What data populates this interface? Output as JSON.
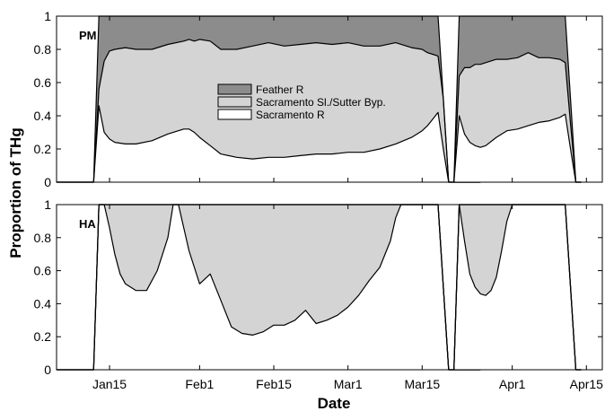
{
  "figure": {
    "ylabel": "Proportion of THg",
    "xlabel": "Date",
    "xticks": [
      "Jan15",
      "Feb1",
      "Feb15",
      "Mar1",
      "Mar15",
      "Apr1",
      "Apr15"
    ],
    "yticks": [
      "0",
      "0.2",
      "0.4",
      "0.6",
      "0.8",
      "1"
    ]
  },
  "legend": {
    "items": [
      {
        "label": "Feather R",
        "color": "#8c8c8c"
      },
      {
        "label": "Sacramento Sl./Sutter Byp.",
        "color": "#d4d4d4"
      },
      {
        "label": "Sacramento R",
        "color": "#ffffff"
      }
    ]
  },
  "chart_data": [
    {
      "type": "area",
      "panel_label": "PM",
      "stacking": "cumulative proportions; bands stacked Sacramento R (bottom), Sacramento Sl./Sutter Byp. (middle), Feather R (top)",
      "xlabel": "Date",
      "ylabel": "Proportion of THg",
      "ylim": [
        0,
        1
      ],
      "colors": {
        "Feather R": "#8c8c8c",
        "Sacramento Sl./Sutter Byp.": "#d4d4d4",
        "Sacramento R": "#ffffff"
      },
      "segments": [
        {
          "x": [
            "Jan 5",
            "Jan 12",
            "Jan 13",
            "Jan 14",
            "Jan 15",
            "Jan 16",
            "Jan 18",
            "Jan 20",
            "Jan 23",
            "Jan 26",
            "Jan 29",
            "Jan 30",
            "Jan 31",
            "Feb 1",
            "Feb 3",
            "Feb 5",
            "Feb 8",
            "Feb 11",
            "Feb 14",
            "Feb 17",
            "Feb 20",
            "Feb 23",
            "Feb 26",
            "Mar 1",
            "Mar 4",
            "Mar 7",
            "Mar 10",
            "Mar 13",
            "Mar 15",
            "Mar 16",
            "Mar 17",
            "Mar 18",
            "Mar 19",
            "Mar 20",
            "Mar 26"
          ],
          "sacramento_r_upper": [
            0,
            0,
            0.46,
            0.3,
            0.26,
            0.24,
            0.23,
            0.23,
            0.25,
            0.29,
            0.32,
            0.32,
            0.3,
            0.27,
            0.22,
            0.17,
            0.15,
            0.14,
            0.15,
            0.15,
            0.16,
            0.17,
            0.17,
            0.18,
            0.18,
            0.2,
            0.23,
            0.27,
            0.31,
            0.34,
            0.38,
            0.42,
            0.2,
            0,
            0
          ],
          "slough_bypass_upper": [
            0,
            0,
            0.56,
            0.73,
            0.79,
            0.8,
            0.81,
            0.8,
            0.8,
            0.83,
            0.85,
            0.86,
            0.85,
            0.86,
            0.85,
            0.8,
            0.8,
            0.82,
            0.84,
            0.82,
            0.83,
            0.84,
            0.83,
            0.84,
            0.82,
            0.82,
            0.84,
            0.81,
            0.8,
            0.78,
            0.77,
            0.76,
            0.5,
            0,
            0
          ],
          "feather_r_upper": [
            0,
            0,
            1,
            1,
            1,
            1,
            1,
            1,
            1,
            1,
            1,
            1,
            1,
            1,
            1,
            1,
            1,
            1,
            1,
            1,
            1,
            1,
            1,
            1,
            1,
            1,
            1,
            1,
            1,
            1,
            1,
            1,
            0.5,
            0,
            0
          ]
        },
        {
          "x": [
            "Mar 21",
            "Mar 22",
            "Mar 23",
            "Mar 24",
            "Mar 25",
            "Mar 26",
            "Mar 27",
            "Mar 29",
            "Mar 31",
            "Apr 2",
            "Apr 4",
            "Apr 6",
            "Apr 8",
            "Apr 10",
            "Apr 11",
            "Apr 12",
            "Apr 13",
            "Apr 14"
          ],
          "sacramento_r_upper": [
            0,
            0.4,
            0.29,
            0.24,
            0.22,
            0.21,
            0.22,
            0.27,
            0.31,
            0.32,
            0.34,
            0.36,
            0.37,
            0.39,
            0.41,
            0.2,
            0,
            0
          ],
          "slough_bypass_upper": [
            0,
            0.64,
            0.69,
            0.69,
            0.71,
            0.71,
            0.72,
            0.74,
            0.74,
            0.75,
            0.78,
            0.75,
            0.75,
            0.74,
            0.72,
            0.35,
            0,
            0
          ],
          "feather_r_upper": [
            0,
            1,
            1,
            1,
            1,
            1,
            1,
            1,
            1,
            1,
            1,
            1,
            1,
            1,
            1,
            0.5,
            0,
            0
          ]
        }
      ]
    },
    {
      "type": "area",
      "panel_label": "HA",
      "stacking": "cumulative proportions; bands stacked Sacramento R (bottom), Sacramento Sl./Sutter Byp. (middle), Feather R (top)",
      "xlabel": "Date",
      "ylabel": "Proportion of THg",
      "ylim": [
        0,
        1
      ],
      "colors": {
        "Feather R": "#8c8c8c",
        "Sacramento Sl./Sutter Byp.": "#d4d4d4",
        "Sacramento R": "#ffffff"
      },
      "segments": [
        {
          "x": [
            "Jan 5",
            "Jan 12",
            "Jan 13",
            "Jan 14",
            "Jan 15",
            "Jan 16",
            "Jan 17",
            "Jan 18",
            "Jan 20",
            "Jan 22",
            "Jan 24",
            "Jan 26",
            "Jan 27",
            "Jan 28",
            "Jan 30",
            "Feb 1",
            "Feb 3",
            "Feb 5",
            "Feb 7",
            "Feb 9",
            "Feb 11",
            "Feb 13",
            "Feb 15",
            "Feb 17",
            "Feb 19",
            "Feb 21",
            "Feb 23",
            "Feb 25",
            "Feb 27",
            "Mar 1",
            "Mar 3",
            "Mar 5",
            "Mar 7",
            "Mar 9",
            "Mar 10",
            "Mar 11",
            "Mar 13",
            "Mar 15",
            "Mar 16",
            "Mar 17",
            "Mar 18",
            "Mar 19",
            "Mar 20",
            "Mar 26"
          ],
          "sacramento_r_upper": [
            0,
            0,
            1,
            1,
            0.86,
            0.7,
            0.58,
            0.52,
            0.48,
            0.48,
            0.6,
            0.8,
            1,
            1,
            0.72,
            0.52,
            0.58,
            0.42,
            0.26,
            0.22,
            0.21,
            0.23,
            0.27,
            0.27,
            0.3,
            0.36,
            0.28,
            0.3,
            0.33,
            0.38,
            0.45,
            0.54,
            0.62,
            0.78,
            0.92,
            1,
            1,
            1,
            1,
            1,
            1,
            0.5,
            0,
            0
          ],
          "slough_bypass_upper": [
            0,
            0,
            1,
            1,
            1,
            1,
            1,
            1,
            1,
            1,
            1,
            1,
            1,
            1,
            1,
            1,
            1,
            1,
            1,
            1,
            1,
            1,
            1,
            1,
            1,
            1,
            1,
            1,
            1,
            1,
            1,
            1,
            1,
            1,
            1,
            1,
            1,
            1,
            1,
            1,
            1,
            0.5,
            0,
            0
          ],
          "feather_r_upper": [
            0,
            0,
            1,
            1,
            1,
            1,
            1,
            1,
            1,
            1,
            1,
            1,
            1,
            1,
            1,
            1,
            1,
            1,
            1,
            1,
            1,
            1,
            1,
            1,
            1,
            1,
            1,
            1,
            1,
            1,
            1,
            1,
            1,
            1,
            1,
            1,
            1,
            1,
            1,
            1,
            1,
            0.5,
            0,
            0
          ]
        },
        {
          "x": [
            "Mar 21",
            "Mar 22",
            "Mar 23",
            "Mar 24",
            "Mar 25",
            "Mar 26",
            "Mar 27",
            "Mar 28",
            "Mar 29",
            "Mar 30",
            "Mar 31",
            "Apr 1",
            "Apr 2",
            "Apr 4",
            "Apr 6",
            "Apr 8",
            "Apr 10",
            "Apr 11",
            "Apr 12",
            "Apr 13",
            "Apr 14"
          ],
          "sacramento_r_upper": [
            0,
            1,
            0.78,
            0.58,
            0.5,
            0.46,
            0.45,
            0.48,
            0.56,
            0.72,
            0.9,
            1,
            1,
            1,
            1,
            1,
            1,
            1,
            0.5,
            0,
            0
          ],
          "slough_bypass_upper": [
            0,
            1,
            1,
            1,
            1,
            1,
            1,
            1,
            1,
            1,
            1,
            1,
            1,
            1,
            1,
            1,
            1,
            1,
            0.5,
            0,
            0
          ],
          "feather_r_upper": [
            0,
            1,
            1,
            1,
            1,
            1,
            1,
            1,
            1,
            1,
            1,
            1,
            1,
            1,
            1,
            1,
            1,
            1,
            0.5,
            0,
            0
          ]
        }
      ]
    }
  ]
}
